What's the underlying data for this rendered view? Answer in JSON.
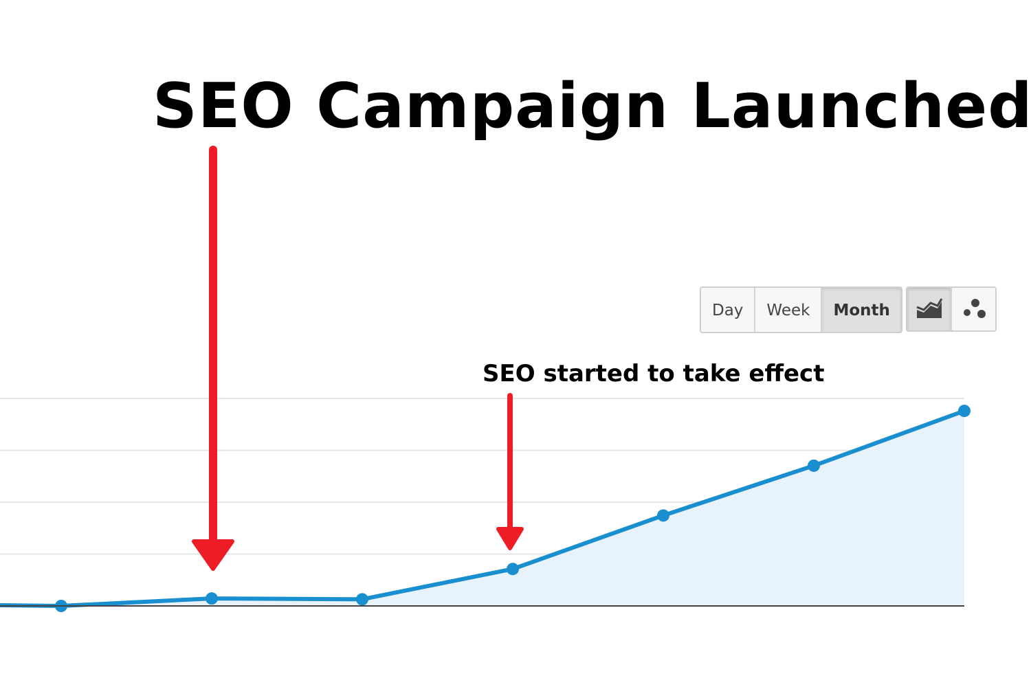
{
  "headline": "SEO Campaign Launched",
  "toolbar": {
    "period_buttons": [
      "Day",
      "Week",
      "Month"
    ],
    "active_period": "Month",
    "views": [
      {
        "icon": "line-chart-icon",
        "active": true
      },
      {
        "icon": "motion-chart-icon",
        "active": false
      }
    ]
  },
  "annotation": {
    "text": "SEO started to take effect"
  },
  "colors": {
    "line": "#1a8fd0",
    "fill": "#e8f2fb",
    "arrow": "#ee1c24",
    "grid": "#e6e6e6",
    "axis": "#444444"
  },
  "chart_data": {
    "type": "area",
    "title": "",
    "xlabel": "",
    "ylabel": "",
    "ylim": [
      0,
      100
    ],
    "grid": true,
    "series": [
      {
        "values": [
          0.8,
          0,
          3.6,
          3.2,
          17.8,
          43.6,
          67.6,
          94.0
        ]
      }
    ]
  }
}
